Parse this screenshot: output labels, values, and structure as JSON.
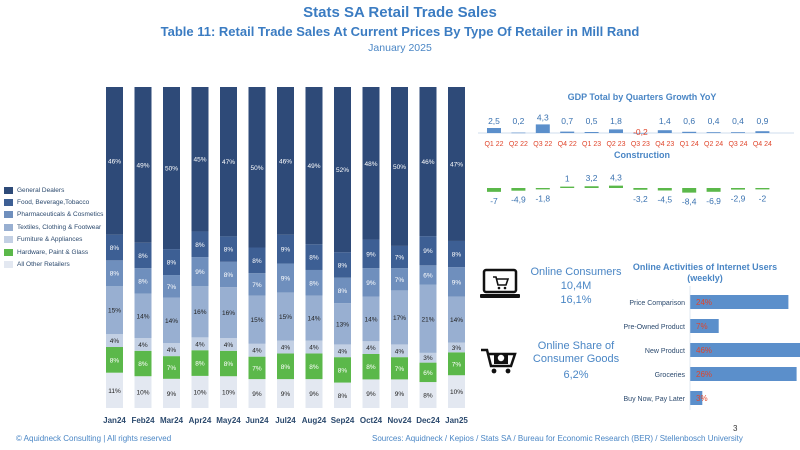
{
  "header": {
    "title": "Stats SA Retail Trade Sales",
    "subtitle": "Table 11: Retail Trade Sales At Current Prices By Type Of Retailer in Mill Rand",
    "date": "January 2025"
  },
  "legend": [
    {
      "label": "General Dealers",
      "color": "#2e4a78"
    },
    {
      "label": "Food, Beverage,Tobacco",
      "color": "#3d5f94"
    },
    {
      "label": "Pharmaceuticals & Cosmetics",
      "color": "#6f8fbd"
    },
    {
      "label": "Textiles, Clothing & Footwear",
      "color": "#98afd1"
    },
    {
      "label": "Furniture & Appliances",
      "color": "#c3d0e4"
    },
    {
      "label": "Hardware, Paint & Glass",
      "color": "#5bb84a"
    },
    {
      "label": "All Other Retailers",
      "color": "#e3e8f1"
    }
  ],
  "chart_data": [
    {
      "type": "bar",
      "stacked": true,
      "title": "Retail Trade Sales By Type Of Retailer",
      "categories": [
        "Jan24",
        "Feb24",
        "Mar24",
        "Apr24",
        "May24",
        "Jun24",
        "Jul24",
        "Aug24",
        "Sep24",
        "Oct24",
        "Nov24",
        "Dec24",
        "Jan25"
      ],
      "series": [
        {
          "name": "All Other Retailers",
          "values": [
            11,
            10,
            9,
            10,
            10,
            9,
            9,
            9,
            8,
            9,
            9,
            8,
            10
          ],
          "labels": [
            "11%",
            "10%",
            "9%",
            "10%",
            "10%",
            "9%",
            "9%",
            "9%",
            "8%",
            "9%",
            "9%",
            "8%",
            "10%"
          ]
        },
        {
          "name": "Hardware, Paint & Glass",
          "values": [
            8,
            8,
            7,
            8,
            8,
            7,
            8,
            8,
            8,
            8,
            7,
            6,
            7
          ],
          "labels": [
            "8%",
            "8%",
            "7%",
            "8%",
            "8%",
            "7%",
            "8%",
            "8%",
            "8%",
            "8%",
            "7%",
            "6%",
            "7%"
          ]
        },
        {
          "name": "Furniture & Appliances",
          "values": [
            4,
            4,
            4,
            4,
            4,
            4,
            4,
            4,
            4,
            4,
            4,
            3,
            3
          ],
          "labels": [
            "4%",
            "4%",
            "4%",
            "4%",
            "4%",
            "4%",
            "4%",
            "4%",
            "4%",
            "4%",
            "4%",
            "3%",
            "3%"
          ]
        },
        {
          "name": "Textiles, Clothing & Footwear",
          "values": [
            15,
            14,
            14,
            16,
            16,
            15,
            15,
            14,
            13,
            14,
            17,
            21,
            14
          ],
          "labels": [
            "15%",
            "14%",
            "14%",
            "16%",
            "16%",
            "15%",
            "15%",
            "14%",
            "13%",
            "14%",
            "17%",
            "21%",
            "14%"
          ]
        },
        {
          "name": "Pharmaceuticals & Cosmetics",
          "values": [
            8,
            8,
            7,
            9,
            8,
            7,
            9,
            8,
            8,
            9,
            7,
            6,
            9
          ],
          "labels": [
            "8%",
            "8%",
            "7%",
            "9%",
            "8%",
            "7%",
            "9%",
            "8%",
            "8%",
            "9%",
            "7%",
            "6%",
            "9%"
          ]
        },
        {
          "name": "Food, Beverage,Tobacco",
          "values": [
            8,
            8,
            8,
            8,
            8,
            8,
            9,
            8,
            8,
            9,
            7,
            9,
            8
          ],
          "labels": [
            "8%",
            "8%",
            "8%",
            "8%",
            "8%",
            "8%",
            "9%",
            "8%",
            "8%",
            "9%",
            "7%",
            "9%",
            "8%"
          ]
        },
        {
          "name": "General Dealers",
          "values": [
            46,
            49,
            50,
            45,
            47,
            50,
            46,
            49,
            52,
            48,
            50,
            46,
            47
          ],
          "labels": [
            "46%",
            "49%",
            "50%",
            "45%",
            "47%",
            "50%",
            "46%",
            "49%",
            "52%",
            "48%",
            "50%",
            "46%",
            "47%"
          ]
        }
      ]
    },
    {
      "type": "bar",
      "title": "GDP Total by Quarters Growth YoY",
      "categories": [
        "Q1 22",
        "Q2 22",
        "Q3 22",
        "Q4 22",
        "Q1 23",
        "Q2 23",
        "Q3 23",
        "Q4 23",
        "Q1 24",
        "Q2 24",
        "Q3 24",
        "Q4 24"
      ],
      "values": [
        2.5,
        0.2,
        4.3,
        0.7,
        0.5,
        1.8,
        -0.2,
        1.4,
        0.6,
        0.4,
        0.4,
        0.9
      ],
      "labels": [
        "2,5",
        "0,2",
        "4,3",
        "0,7",
        "0,5",
        "1,8",
        "-0,2",
        "1,4",
        "0,6",
        "0,4",
        "0,4",
        "0,9"
      ],
      "label_colors": [
        "#3a72b0",
        "#3a72b0",
        "#3a72b0",
        "#3a72b0",
        "#3a72b0",
        "#3a72b0",
        "#e0452b",
        "#3a72b0",
        "#3a72b0",
        "#3a72b0",
        "#3a72b0",
        "#3a72b0"
      ]
    },
    {
      "type": "bar",
      "title": "Construction",
      "values": [
        -7,
        -4.9,
        -1.8,
        1,
        3.2,
        4.3,
        -3.2,
        -4.5,
        -8.4,
        -6.9,
        -2.9,
        -2
      ],
      "labels": [
        "-7",
        "-4,9",
        "-1,8",
        "1",
        "3,2",
        "4,3",
        "-3,2",
        "-4,5",
        "-8,4",
        "-6,9",
        "-2,9",
        "-2"
      ]
    },
    {
      "type": "bar",
      "orientation": "horizontal",
      "title": "Online Activities of Internet Users (weekly)",
      "categories": [
        "Price Comparison",
        "Pre-Owned Product",
        "New Product",
        "Groceries",
        "Buy Now, Pay Later"
      ],
      "values": [
        24,
        7,
        46,
        26,
        3
      ],
      "labels": [
        "24%",
        "7%",
        "46%",
        "26%",
        "3%"
      ]
    }
  ],
  "gdp_title": "GDP Total by Quarters Growth YoY",
  "construction_title": "Construction",
  "online_title": "Online Activities of Internet Users (weekly)",
  "consumers": {
    "label": "Online Consumers",
    "count": "10,4M",
    "pct": "16,1%"
  },
  "share": {
    "label": "Online Share of Consumer Goods",
    "pct": "6,2%"
  },
  "page_number": "3",
  "footer": {
    "copyright": "© Aquidneck Consulting | All rights reserved",
    "sources": "Sources: Aquidneck / Kepios / Stats SA / Bureau for Economic Research (BER) / Stellenbosch University"
  },
  "colors": {
    "accent": "#4a86c5",
    "gdp_bar": "#5b8fcb",
    "construction_bar": "#5bb84a",
    "online_bar": "#5b8fcb",
    "online_label": "#e0452b"
  }
}
